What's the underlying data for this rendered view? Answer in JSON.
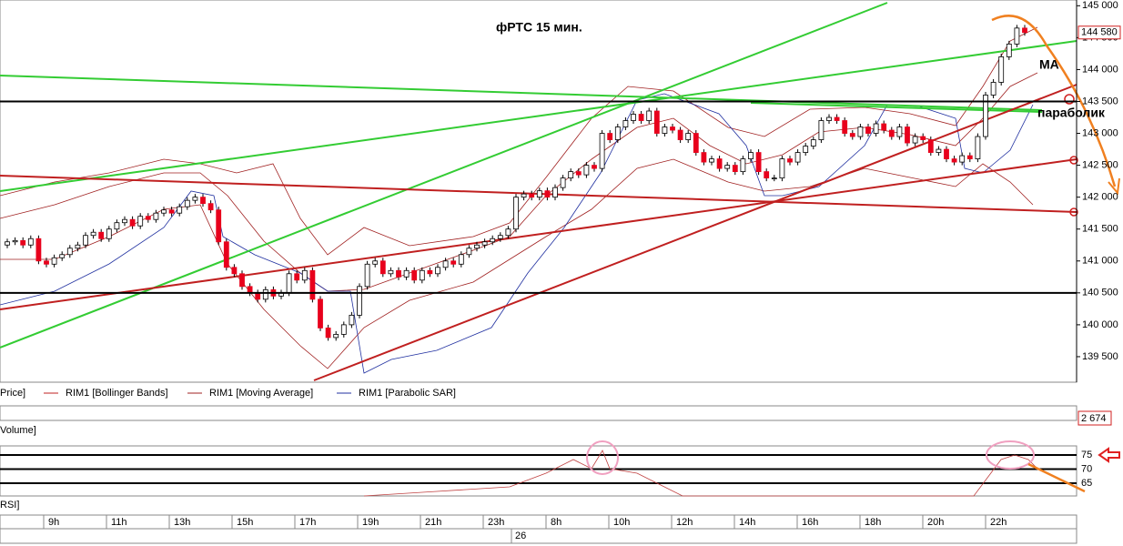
{
  "chart_data": {
    "type": "candlestick",
    "title": "фРТС   15 мин.",
    "annotations": [
      "МА",
      "параболик"
    ],
    "open": [
      141250,
      141300,
      141320,
      141250,
      141350,
      141000,
      140950,
      141050,
      141100,
      141200,
      141250,
      141400,
      141450,
      141350,
      141500,
      141600,
      141650,
      141550,
      141700,
      141650,
      141750,
      141800,
      141750,
      141850,
      141950,
      142000,
      141900,
      141800,
      141300,
      140900,
      140800,
      140600,
      140500,
      140400,
      140550,
      140450,
      140500,
      140800,
      140700,
      140850,
      140400,
      139950,
      139800,
      139850,
      140000,
      140150,
      140600,
      140950,
      141000,
      140800,
      140850,
      140750,
      140850,
      140700,
      140850,
      140800,
      140900,
      141000,
      140950,
      141100,
      141200,
      141250,
      141300,
      141350,
      141400,
      141500,
      142000,
      142050,
      142000,
      142100,
      142000,
      142150,
      142300,
      142400,
      142350,
      142500,
      142450,
      143000,
      142900,
      143100,
      143200,
      143300,
      143200,
      143350,
      143000,
      143100,
      143050,
      142900,
      143000,
      142700,
      142550,
      142600,
      142450,
      142500,
      142400,
      142600,
      142700,
      142400,
      142300,
      142300,
      142600,
      142550,
      142700,
      142800,
      142900,
      143200,
      143250,
      143200,
      143000,
      142950,
      143100,
      143000,
      143150,
      143050,
      142950,
      143100,
      142850,
      142950,
      142900,
      142700,
      142750,
      142600,
      142550,
      142650,
      142600,
      142950,
      143600,
      143800,
      144200,
      144400,
      144650
    ],
    "high": [
      141350,
      141370,
      141370,
      141400,
      141400,
      141050,
      141100,
      141150,
      141250,
      141300,
      141450,
      141500,
      141500,
      141550,
      141650,
      141700,
      141700,
      141750,
      141750,
      141800,
      141850,
      141850,
      141900,
      142000,
      142050,
      142050,
      141950,
      141850,
      141350,
      140950,
      140850,
      140650,
      140550,
      140600,
      140600,
      140550,
      140850,
      140850,
      140900,
      140900,
      140450,
      140000,
      139900,
      140050,
      140200,
      140650,
      141000,
      141050,
      141050,
      140900,
      140900,
      140900,
      140900,
      140900,
      140900,
      140950,
      141050,
      141050,
      141150,
      141250,
      141300,
      141350,
      141400,
      141450,
      141550,
      142050,
      142100,
      142100,
      142150,
      142150,
      142200,
      142350,
      142450,
      142450,
      142550,
      142550,
      143050,
      143050,
      143150,
      143250,
      143350,
      143350,
      143400,
      143400,
      143150,
      143150,
      143100,
      143050,
      143050,
      142750,
      142650,
      142650,
      142550,
      142550,
      142650,
      142750,
      142750,
      142450,
      142350,
      142650,
      142650,
      142750,
      142850,
      142950,
      143250,
      143300,
      143300,
      143250,
      143050,
      143150,
      143150,
      143200,
      143200,
      143100,
      143150,
      143150,
      143000,
      143000,
      142950,
      142800,
      142800,
      142650,
      142700,
      142700,
      143000,
      143650,
      143850,
      144250,
      144450,
      144700,
      144700
    ],
    "low": [
      141200,
      141250,
      141200,
      141200,
      140950,
      140900,
      140900,
      141000,
      141050,
      141150,
      141200,
      141350,
      141300,
      141300,
      141450,
      141550,
      141500,
      141500,
      141600,
      141600,
      141700,
      141700,
      141700,
      141800,
      141900,
      141850,
      141750,
      141250,
      140850,
      140750,
      140550,
      140450,
      140350,
      140350,
      140400,
      140400,
      140450,
      140650,
      140650,
      140350,
      139900,
      139750,
      139750,
      139800,
      139950,
      140100,
      140550,
      140900,
      140750,
      140750,
      140700,
      140700,
      140650,
      140650,
      140750,
      140750,
      140850,
      140900,
      140900,
      141050,
      141150,
      141200,
      141250,
      141300,
      141350,
      141450,
      141950,
      141950,
      141950,
      141950,
      141950,
      142100,
      142250,
      142300,
      142300,
      142400,
      142400,
      142850,
      142850,
      143050,
      143150,
      143150,
      143150,
      142950,
      142950,
      143000,
      142850,
      142850,
      142650,
      142500,
      142500,
      142400,
      142400,
      142350,
      142350,
      142550,
      142350,
      142250,
      142250,
      142250,
      142500,
      142500,
      142650,
      142750,
      142850,
      143150,
      143150,
      142950,
      142900,
      142900,
      142950,
      142950,
      143000,
      142900,
      142900,
      142800,
      142800,
      142850,
      142650,
      142650,
      142550,
      142500,
      142500,
      142550,
      142550,
      142900,
      143550,
      143750,
      144150,
      144350,
      144530
    ],
    "close": [
      141300,
      141320,
      141250,
      141350,
      141000,
      140950,
      141050,
      141100,
      141200,
      141250,
      141400,
      141450,
      141350,
      141500,
      141600,
      141650,
      141550,
      141700,
      141650,
      141750,
      141800,
      141750,
      141850,
      141950,
      142000,
      141900,
      141800,
      141300,
      140900,
      140800,
      140600,
      140500,
      140400,
      140550,
      140450,
      140500,
      140800,
      140700,
      140850,
      140400,
      139950,
      139800,
      139850,
      140000,
      140150,
      140600,
      140950,
      141000,
      140800,
      140850,
      140750,
      140850,
      140700,
      140850,
      140800,
      140900,
      141000,
      140950,
      141100,
      141200,
      141250,
      141300,
      141350,
      141400,
      141500,
      142000,
      142050,
      142000,
      142100,
      142000,
      142150,
      142300,
      142400,
      142350,
      142500,
      142450,
      143000,
      142900,
      143100,
      143200,
      143300,
      143200,
      143350,
      143000,
      143100,
      143050,
      142900,
      143000,
      142700,
      142550,
      142600,
      142450,
      142500,
      142400,
      142600,
      142700,
      142400,
      142300,
      142300,
      142600,
      142550,
      142700,
      142800,
      142900,
      143200,
      143250,
      143200,
      143000,
      142950,
      143100,
      143000,
      143150,
      143050,
      142950,
      143100,
      142850,
      142950,
      142900,
      142700,
      142750,
      142600,
      142550,
      142650,
      142600,
      142950,
      143600,
      143800,
      144200,
      144400,
      144650,
      144580
    ],
    "colors": {
      "up": "#ffffff",
      "down": "#e8001c",
      "wick": "#000000"
    },
    "ylim": [
      139100,
      145090
    ],
    "yticks": [
      {
        "value": 145000,
        "label": "145 000"
      },
      {
        "value": 144500,
        "label": "144 500"
      },
      {
        "value": 144000,
        "label": "144 000"
      },
      {
        "value": 143500,
        "label": "143 500"
      },
      {
        "value": 143000,
        "label": "143 000"
      },
      {
        "value": 142500,
        "label": "142 500"
      },
      {
        "value": 142000,
        "label": "142 000"
      },
      {
        "value": 141500,
        "label": "141 500"
      },
      {
        "value": 141000,
        "label": "141 000"
      },
      {
        "value": 140500,
        "label": "140 500"
      },
      {
        "value": 140000,
        "label": "140 000"
      },
      {
        "value": 139500,
        "label": "139 500"
      }
    ],
    "last_price": {
      "value": 144580,
      "label": "144 580"
    },
    "hlines": [
      143500,
      140500
    ],
    "legend": [
      "Price]",
      "RIM1 [Bollinger Bands]",
      "RIM1 [Moving Average]",
      "RIM1 [Parabolic SAR]"
    ],
    "volume_label": "Volume]",
    "volume_last": {
      "value": 2674,
      "label": "2 674"
    },
    "rsi_label": "RSI]",
    "rsi_ylim": [
      60.5,
      78.2
    ],
    "rsi_yticks": [
      75,
      70,
      65
    ],
    "time_labels": [
      "9h",
      "11h",
      "13h",
      "15h",
      "17h",
      "19h",
      "21h",
      "23h",
      "8h",
      "10h",
      "12h",
      "14h",
      "16h",
      "18h",
      "20h",
      "22h"
    ],
    "date_label": "26"
  }
}
